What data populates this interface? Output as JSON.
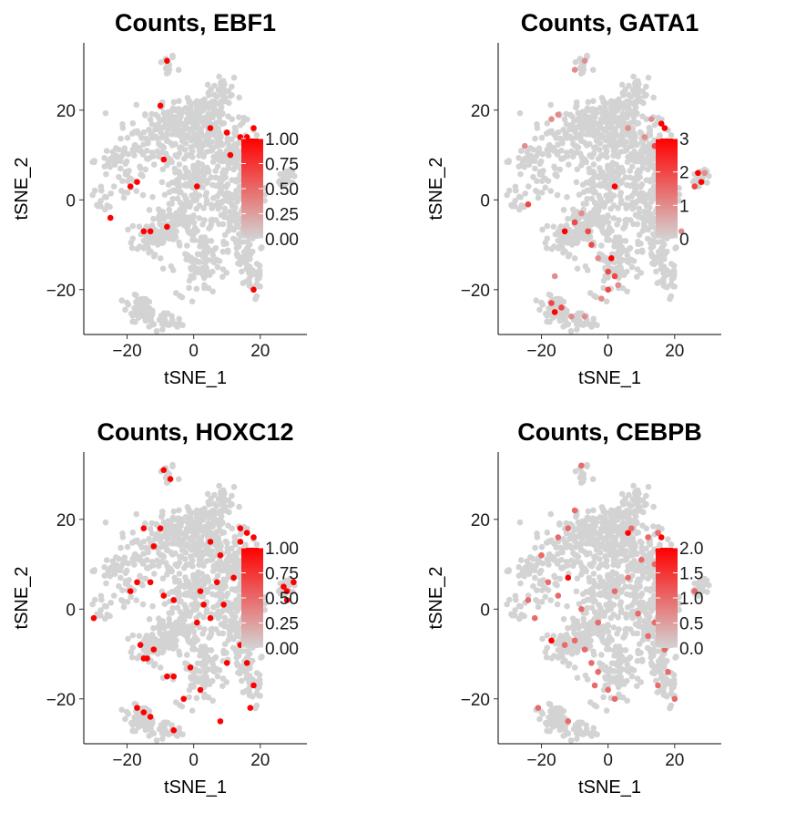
{
  "chart_data": [
    {
      "type": "scatter",
      "title": "Counts, EBF1",
      "xlabel": "tSNE_1",
      "ylabel": "tSNE_2",
      "xlim": [
        -33,
        34
      ],
      "ylim": [
        -30,
        35
      ],
      "xticks": [
        "−20",
        "0",
        "20"
      ],
      "yticks": [
        "−20",
        "0",
        "20"
      ],
      "color_range": [
        0,
        1
      ],
      "legend_ticks": [
        "1.00",
        "0.75",
        "0.50",
        "0.25",
        "0.00"
      ],
      "points": [
        [
          -8,
          31,
          1
        ],
        [
          -10,
          21,
          1
        ],
        [
          -9,
          9,
          1
        ],
        [
          -17,
          4,
          1
        ],
        [
          -19,
          3,
          1
        ],
        [
          -25,
          -4,
          1
        ],
        [
          -13,
          -7,
          1
        ],
        [
          -15,
          -7,
          1
        ],
        [
          -8,
          -6,
          1
        ],
        [
          1,
          3,
          1
        ],
        [
          5,
          16,
          1
        ],
        [
          10,
          15,
          1
        ],
        [
          14,
          14,
          1
        ],
        [
          16,
          14,
          1
        ],
        [
          18,
          16,
          1
        ],
        [
          11,
          10,
          1
        ],
        [
          18,
          -20,
          1
        ]
      ]
    },
    {
      "type": "scatter",
      "title": "Counts, GATA1",
      "xlabel": "tSNE_1",
      "ylabel": "tSNE_2",
      "xlim": [
        -33,
        34
      ],
      "ylim": [
        -30,
        35
      ],
      "xticks": [
        "−20",
        "0",
        "20"
      ],
      "yticks": [
        "−20",
        "0",
        "20"
      ],
      "color_range": [
        0,
        3
      ],
      "legend_ticks": [
        "3",
        "2",
        "1",
        "0"
      ],
      "points": [
        [
          -7,
          31,
          1
        ],
        [
          -10,
          29,
          1
        ],
        [
          -15,
          19,
          1
        ],
        [
          -17,
          18,
          1
        ],
        [
          -25,
          12,
          1
        ],
        [
          -24,
          -1,
          2
        ],
        [
          -13,
          -7,
          3
        ],
        [
          -10,
          -5,
          2
        ],
        [
          -8,
          -3,
          1
        ],
        [
          -6,
          -7,
          2
        ],
        [
          -5,
          -10,
          2
        ],
        [
          -3,
          -13,
          1
        ],
        [
          0,
          -16,
          2
        ],
        [
          1,
          -13,
          3
        ],
        [
          2,
          -17,
          2
        ],
        [
          3,
          -19,
          1
        ],
        [
          0,
          -20,
          2
        ],
        [
          -2,
          -22,
          1
        ],
        [
          -17,
          -23,
          2
        ],
        [
          -16,
          -25,
          3
        ],
        [
          -14,
          -24,
          2
        ],
        [
          -11,
          -26,
          1
        ],
        [
          -7,
          -26,
          1
        ],
        [
          2,
          3,
          3
        ],
        [
          6,
          16,
          1
        ],
        [
          13,
          18,
          1
        ],
        [
          16,
          17,
          3
        ],
        [
          17,
          16,
          3
        ],
        [
          14,
          12,
          2
        ],
        [
          11,
          14,
          1
        ],
        [
          27,
          6,
          3
        ],
        [
          28,
          4,
          3
        ],
        [
          26,
          3,
          2
        ],
        [
          29,
          6,
          1
        ],
        [
          22,
          -7,
          1
        ],
        [
          -16,
          -17,
          1
        ]
      ]
    },
    {
      "type": "scatter",
      "title": "Counts, HOXC12",
      "xlabel": "tSNE_1",
      "ylabel": "tSNE_2",
      "xlim": [
        -33,
        34
      ],
      "ylim": [
        -30,
        35
      ],
      "xticks": [
        "−20",
        "0",
        "20"
      ],
      "yticks": [
        "−20",
        "0",
        "20"
      ],
      "color_range": [
        0,
        1
      ],
      "legend_ticks": [
        "1.00",
        "0.75",
        "0.50",
        "0.25",
        "0.00"
      ],
      "points": [
        [
          -9,
          31,
          1
        ],
        [
          -7,
          29,
          1
        ],
        [
          -15,
          18,
          1
        ],
        [
          -10,
          18,
          1
        ],
        [
          -12,
          14,
          1
        ],
        [
          -17,
          6,
          1
        ],
        [
          -19,
          4,
          1
        ],
        [
          -13,
          6,
          1
        ],
        [
          -9,
          3,
          1
        ],
        [
          -6,
          2,
          1
        ],
        [
          -30,
          -2,
          1
        ],
        [
          -16,
          -8,
          1
        ],
        [
          -14,
          -11,
          1
        ],
        [
          -12,
          -9,
          1
        ],
        [
          -15,
          -11,
          1
        ],
        [
          -8,
          -15,
          1
        ],
        [
          -6,
          -15,
          1
        ],
        [
          -1,
          -13,
          1
        ],
        [
          -3,
          -20,
          1
        ],
        [
          2,
          -18,
          1
        ],
        [
          8,
          -25,
          1
        ],
        [
          -17,
          -22,
          1
        ],
        [
          -15,
          -23,
          1
        ],
        [
          -13,
          -24,
          1
        ],
        [
          -6,
          -27,
          1
        ],
        [
          5,
          15,
          1
        ],
        [
          8,
          12,
          1
        ],
        [
          14,
          18,
          1
        ],
        [
          16,
          17,
          1
        ],
        [
          14,
          15,
          1
        ],
        [
          16,
          13,
          1
        ],
        [
          18,
          16,
          1
        ],
        [
          12,
          7,
          1
        ],
        [
          7,
          6,
          1
        ],
        [
          2,
          4,
          1
        ],
        [
          3,
          1,
          1
        ],
        [
          9,
          1,
          1
        ],
        [
          27,
          5,
          1
        ],
        [
          28,
          4,
          1
        ],
        [
          30,
          6,
          1
        ],
        [
          28,
          2,
          1
        ],
        [
          14,
          -8,
          1
        ],
        [
          16,
          -12,
          1
        ],
        [
          18,
          -17,
          1
        ],
        [
          17,
          -22,
          1
        ],
        [
          10,
          -12,
          1
        ],
        [
          5,
          -2,
          1
        ],
        [
          1,
          -3,
          1
        ]
      ]
    },
    {
      "type": "scatter",
      "title": "Counts, CEBPB",
      "xlabel": "tSNE_1",
      "ylabel": "tSNE_2",
      "xlim": [
        -33,
        34
      ],
      "ylim": [
        -30,
        35
      ],
      "xticks": [
        "−20",
        "0",
        "20"
      ],
      "yticks": [
        "−20",
        "0",
        "20"
      ],
      "color_range": [
        0,
        2
      ],
      "legend_ticks": [
        "2.0",
        "1.5",
        "1.0",
        "0.5",
        "0.0"
      ],
      "points": [
        [
          -8,
          32,
          1
        ],
        [
          -10,
          22,
          1
        ],
        [
          -12,
          18,
          1
        ],
        [
          -15,
          16,
          1
        ],
        [
          -20,
          12,
          1
        ],
        [
          -24,
          2,
          1
        ],
        [
          -22,
          -2,
          1
        ],
        [
          -18,
          6,
          1
        ],
        [
          -15,
          3,
          1
        ],
        [
          -12,
          7,
          2
        ],
        [
          -8,
          0,
          1
        ],
        [
          -17,
          -7,
          2
        ],
        [
          -13,
          -8,
          1
        ],
        [
          -10,
          -7,
          1
        ],
        [
          -7,
          -9,
          1
        ],
        [
          -5,
          -12,
          1
        ],
        [
          -3,
          -14,
          1
        ],
        [
          0,
          -18,
          1
        ],
        [
          2,
          -20,
          1
        ],
        [
          -4,
          -17,
          1
        ],
        [
          -21,
          -22,
          1
        ],
        [
          -12,
          -25,
          1
        ],
        [
          6,
          17,
          2
        ],
        [
          7,
          18,
          1
        ],
        [
          12,
          16,
          1
        ],
        [
          15,
          17,
          1
        ],
        [
          16,
          16,
          2
        ],
        [
          10,
          11,
          1
        ],
        [
          15,
          13,
          1
        ],
        [
          14,
          10,
          1
        ],
        [
          9,
          -1,
          1
        ],
        [
          12,
          -6,
          1
        ],
        [
          14,
          -3,
          1
        ],
        [
          17,
          -9,
          1
        ],
        [
          18,
          -14,
          1
        ],
        [
          15,
          -17,
          1
        ],
        [
          20,
          -20,
          1
        ],
        [
          26,
          4,
          1
        ],
        [
          6,
          7,
          1
        ],
        [
          2,
          4,
          1
        ],
        [
          -3,
          -3,
          1
        ]
      ]
    }
  ]
}
